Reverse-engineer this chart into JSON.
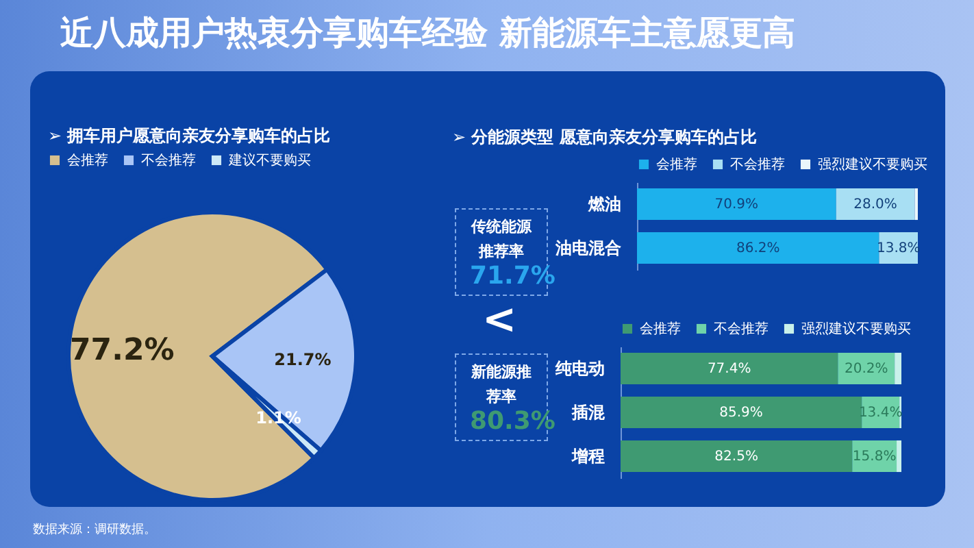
{
  "chart_data": [
    {
      "type": "other",
      "title": "近八成用户热衷分享购车经验 新能源车主意愿更高"
    },
    {
      "type": "pie",
      "title": "➢ 拥车用户愿意向亲友分享购车的占比",
      "categories": [
        "会推荐",
        "不会推荐",
        "建议不要购买"
      ],
      "values": [
        77.2,
        21.7,
        1.1
      ],
      "colors": [
        "#d5bf8f",
        "#a9c5f6",
        "#cde9f7"
      ],
      "value_labels": [
        "77.2%",
        "21.7%",
        "1.1%"
      ],
      "legend": "top",
      "annotations": [
        "数据来源：调研数据。"
      ]
    },
    {
      "type": "other",
      "title": "➢ 分能源类型 愿意向亲友分享购车的占比",
      "annotations": [
        "传统能源推荐率",
        "71.7%",
        "<",
        "新能源推荐率",
        "80.3%"
      ]
    },
    {
      "type": "bar",
      "orientation": "horizontal",
      "stacked": true,
      "categories": [
        "燃油",
        "油电混合"
      ],
      "xlim": [
        0,
        100
      ],
      "tick_labels": "y",
      "legend": "top",
      "series": [
        {
          "name": "会推荐",
          "color": "#1db1ec",
          "values": [
            70.9,
            86.2
          ],
          "value_labels": [
            "70.9%",
            "86.2%"
          ]
        },
        {
          "name": "不会推荐",
          "color": "#a8dff3",
          "values": [
            28.0,
            13.8
          ],
          "value_labels": [
            "28.0%",
            "13.8%"
          ]
        },
        {
          "name": "强烈建议不要购买",
          "color": "#eaf6fb",
          "values": [
            1.1,
            0
          ],
          "value_labels": [
            null,
            null
          ]
        }
      ]
    },
    {
      "type": "bar",
      "orientation": "horizontal",
      "stacked": true,
      "categories": [
        "纯电动",
        "插混",
        "增程"
      ],
      "xlim": [
        0,
        100
      ],
      "tick_labels": "y",
      "legend": "top",
      "series": [
        {
          "name": "会推荐",
          "color": "#3f9a72",
          "values": [
            77.4,
            85.9,
            82.5
          ],
          "value_labels": [
            "77.4%",
            "85.9%",
            "82.5%"
          ]
        },
        {
          "name": "不会推荐",
          "color": "#6fd3a9",
          "values": [
            20.2,
            13.4,
            15.8
          ],
          "value_labels": [
            "20.2%",
            "13.4%",
            "15.8%"
          ]
        },
        {
          "name": "强烈建议不要购买",
          "color": "#c9f1ea",
          "values": [
            2.4,
            0.7,
            1.7
          ],
          "value_labels": [
            null,
            null,
            null
          ]
        }
      ]
    }
  ]
}
